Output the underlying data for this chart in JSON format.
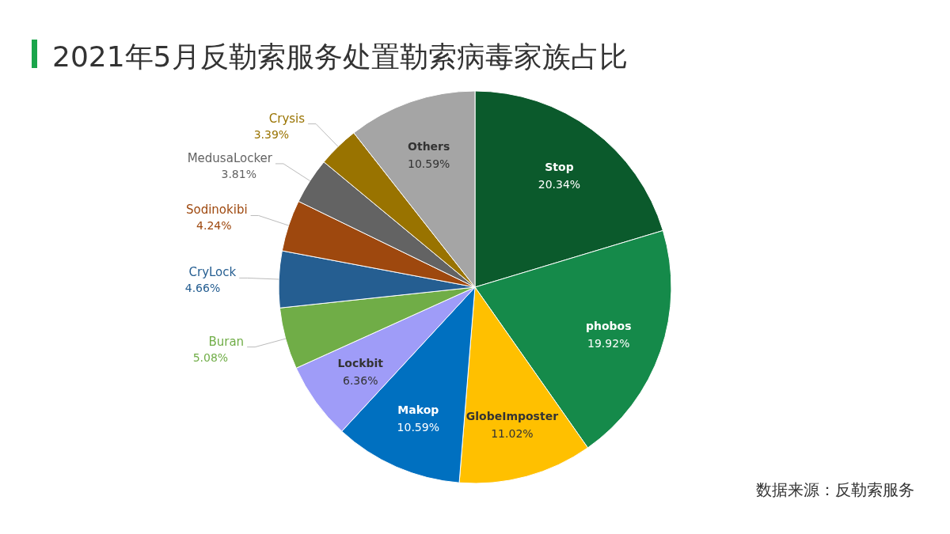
{
  "chart_data": {
    "type": "pie",
    "title": "2021年5月反勒索服务处置勒索病毒家族占比",
    "categories": [
      "Stop",
      "phobos",
      "GlobeImposter",
      "Makop",
      "Lockbit",
      "Buran",
      "CryLock",
      "Sodinokibi",
      "MedusaLocker",
      "Crysis",
      "Others"
    ],
    "values": [
      20.34,
      19.92,
      11.02,
      10.59,
      6.36,
      5.08,
      4.66,
      4.24,
      3.81,
      3.39,
      10.59
    ],
    "value_labels": [
      "20.34%",
      "19.92%",
      "11.02%",
      "10.59%",
      "6.36%",
      "5.08%",
      "4.66%",
      "4.24%",
      "3.81%",
      "3.39%",
      "10.59%"
    ],
    "colors": [
      "#0b5a2c",
      "#158a4a",
      "#ffc000",
      "#0070c0",
      "#9f9cf8",
      "#70ad47",
      "#255e91",
      "#9e480e",
      "#636363",
      "#997300",
      "#a5a5a5"
    ],
    "annotations": [
      "数据来源：反勒索服务"
    ]
  }
}
